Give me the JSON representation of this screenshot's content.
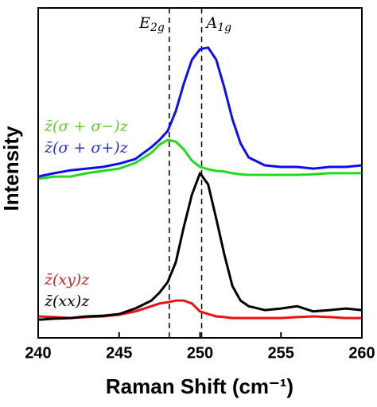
{
  "chart_data": {
    "type": "line",
    "xlabel": "Raman Shift (cm⁻¹)",
    "ylabel": "Intensity",
    "x": [
      240,
      241,
      242,
      243,
      244,
      245,
      246,
      247,
      247.5,
      248,
      248.5,
      249,
      249.5,
      250,
      250.5,
      251,
      251.5,
      252,
      252.5,
      253,
      254,
      255,
      256,
      257,
      258,
      259,
      260
    ],
    "xlim": [
      240,
      260
    ],
    "xticks": [
      240,
      245,
      250,
      255,
      260
    ],
    "ylim": [
      0,
      100
    ],
    "series": [
      {
        "name": "z̄(σ + σ−)z",
        "color": "#1fdc1f",
        "label_color": "#62cc2e",
        "values": [
          48.2,
          48.9,
          48.9,
          49.9,
          50.6,
          51.3,
          53.0,
          56.1,
          58.6,
          60.0,
          59.5,
          57.1,
          53.7,
          51.8,
          51.1,
          50.6,
          50.4,
          49.9,
          49.6,
          49.4,
          49.4,
          49.4,
          49.4,
          49.6,
          49.9,
          49.9,
          49.9
        ]
      },
      {
        "name": "z̄(σ + σ+)z",
        "color": "#0d0df0",
        "label_color": "#2a33c4",
        "values": [
          48.9,
          49.9,
          50.8,
          51.3,
          51.8,
          52.8,
          54.2,
          57.8,
          60.0,
          62.7,
          68.7,
          77.1,
          84.3,
          87.5,
          88.0,
          84.3,
          75.9,
          66.3,
          59.0,
          54.7,
          52.3,
          51.8,
          51.8,
          51.3,
          51.8,
          51.8,
          52.3
        ]
      },
      {
        "name": "z̄(xy)z",
        "color": "#ee1010",
        "label_color": "#d0232a",
        "values": [
          6.5,
          6.3,
          6.0,
          6.3,
          6.5,
          7.0,
          8.0,
          9.6,
          10.4,
          10.8,
          11.3,
          11.3,
          10.4,
          8.0,
          7.2,
          6.5,
          6.3,
          6.0,
          6.0,
          6.0,
          6.0,
          6.0,
          6.3,
          6.5,
          6.3,
          6.0,
          6.0
        ]
      },
      {
        "name": "z̄(xx)z",
        "color": "#000000",
        "label_color": "#000000",
        "values": [
          5.5,
          5.8,
          6.0,
          6.5,
          6.7,
          7.2,
          8.9,
          11.3,
          13.7,
          16.9,
          22.9,
          33.7,
          43.4,
          49.9,
          46.5,
          36.1,
          25.3,
          15.7,
          11.3,
          9.6,
          8.4,
          8.9,
          9.6,
          8.0,
          8.4,
          8.9,
          8.4
        ]
      }
    ],
    "annotations": [
      {
        "label": "E",
        "subscript": "2g",
        "x": 248.1
      },
      {
        "label": "A",
        "subscript": "1g",
        "x": 250.1
      }
    ]
  }
}
